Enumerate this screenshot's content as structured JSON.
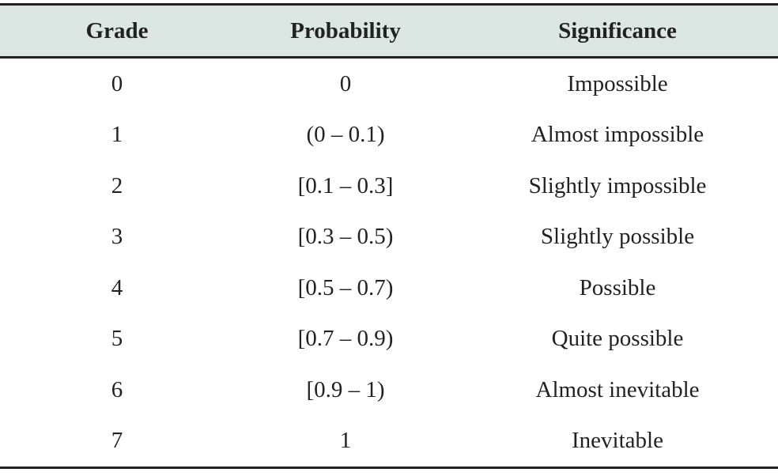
{
  "table": {
    "headers": [
      "Grade",
      "Probability",
      "Significance"
    ],
    "rows": [
      [
        "0",
        "0",
        "Impossible"
      ],
      [
        "1",
        "(0 – 0.1)",
        "Almost impossible"
      ],
      [
        "2",
        "[0.1 – 0.3]",
        "Slightly impossible"
      ],
      [
        "3",
        "[0.3 – 0.5)",
        "Slightly possible"
      ],
      [
        "4",
        "[0.5 – 0.7)",
        "Possible"
      ],
      [
        "5",
        "[0.7 – 0.9)",
        "Quite possible"
      ],
      [
        "6",
        "[0.9 – 1)",
        "Almost inevitable"
      ],
      [
        "7",
        "1",
        "Inevitable"
      ]
    ],
    "header_bg": "#dce7e3",
    "rule_color": "#222222"
  }
}
